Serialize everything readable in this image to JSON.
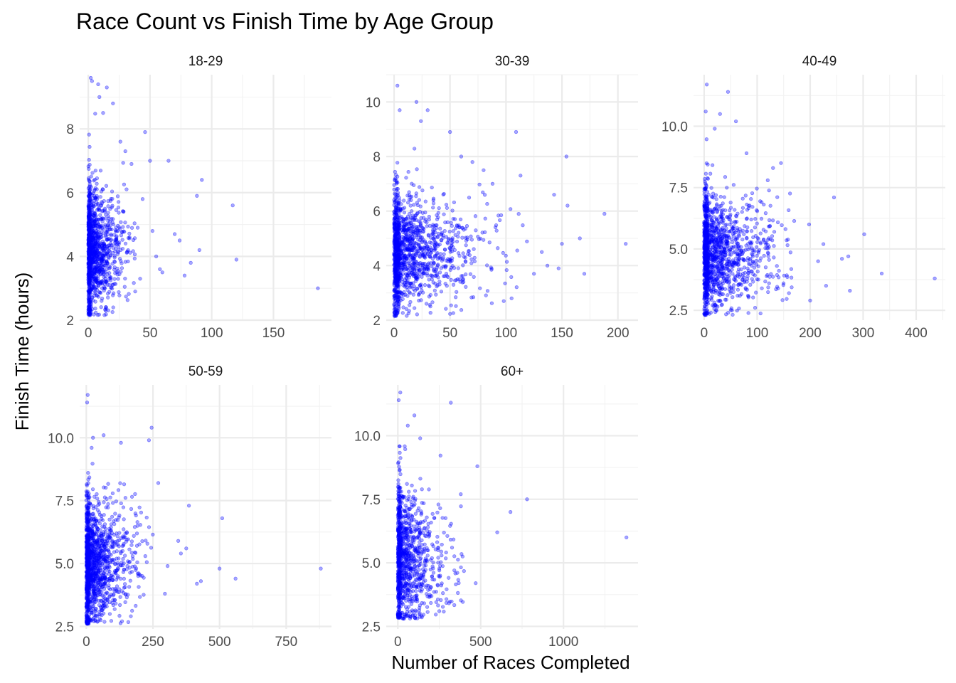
{
  "chart_data": {
    "type": "scatter",
    "title": "Race Count vs Finish Time by Age Group",
    "xlabel": "Number of Races Completed",
    "ylabel": "Finish Time (hours)",
    "point_color": "#0000ff",
    "grid": true,
    "facets": [
      {
        "label": "18-29",
        "xlim": [
          -7,
          197
        ],
        "ylim": [
          2.0,
          9.7
        ],
        "xticks": [
          0,
          50,
          100,
          150
        ],
        "yticks": [
          2,
          4,
          6,
          8
        ],
        "cloud": {
          "n": 900,
          "xmax_dense": 38,
          "xscale": 10,
          "ymean": 4.2,
          "ysd": 0.9,
          "ymin": 2.15
        },
        "outliers": [
          [
            120,
            3.9
          ],
          [
            117,
            5.6
          ],
          [
            186,
            3.0
          ],
          [
            92,
            6.4
          ],
          [
            90,
            4.2
          ],
          [
            88,
            5.9
          ],
          [
            83,
            3.8
          ],
          [
            78,
            3.4
          ],
          [
            74,
            4.5
          ],
          [
            70,
            4.7
          ],
          [
            65,
            7.0
          ],
          [
            60,
            3.5
          ],
          [
            58,
            3.6
          ],
          [
            55,
            4.0
          ],
          [
            52,
            4.8
          ],
          [
            50,
            7.0
          ],
          [
            46,
            7.9
          ],
          [
            44,
            5.8
          ],
          [
            42,
            3.3
          ],
          [
            40,
            4.9
          ],
          [
            38,
            2.9
          ],
          [
            35,
            6.9
          ],
          [
            30,
            7.3
          ],
          [
            26,
            7.6
          ],
          [
            20,
            8.8
          ],
          [
            15,
            9.3
          ],
          [
            12,
            8.5
          ],
          [
            9,
            9.0
          ],
          [
            8,
            9.4
          ],
          [
            3,
            9.5
          ],
          [
            2,
            9.6
          ]
        ]
      },
      {
        "label": "30-39",
        "xlim": [
          -7,
          218
        ],
        "ylim": [
          2.0,
          11.0
        ],
        "xticks": [
          0,
          50,
          100,
          150,
          200
        ],
        "yticks": [
          2,
          4,
          6,
          8,
          10
        ],
        "cloud": {
          "n": 1000,
          "xmax_dense": 120,
          "xscale": 25,
          "ymean": 4.5,
          "ysd": 1.0,
          "ymin": 2.15
        },
        "outliers": [
          [
            207,
            4.8
          ],
          [
            188,
            5.9
          ],
          [
            170,
            3.7
          ],
          [
            166,
            5.0
          ],
          [
            155,
            6.2
          ],
          [
            154,
            8.0
          ],
          [
            150,
            4.8
          ],
          [
            147,
            3.9
          ],
          [
            143,
            6.6
          ],
          [
            137,
            4.0
          ],
          [
            132,
            4.5
          ],
          [
            125,
            3.7
          ],
          [
            113,
            7.3
          ],
          [
            109,
            8.9
          ],
          [
            105,
            2.8
          ],
          [
            98,
            2.7
          ],
          [
            88,
            7.0
          ],
          [
            80,
            7.5
          ],
          [
            70,
            7.8
          ],
          [
            60,
            8.0
          ],
          [
            50,
            8.9
          ],
          [
            30,
            9.7
          ],
          [
            24,
            9.3
          ],
          [
            20,
            10.0
          ],
          [
            3,
            10.6
          ],
          [
            5,
            9.7
          ]
        ]
      },
      {
        "label": "40-49",
        "xlim": [
          -20,
          455
        ],
        "ylim": [
          2.1,
          12.1
        ],
        "xticks": [
          0,
          100,
          200,
          300,
          400
        ],
        "yticks": [
          2.5,
          5.0,
          7.5,
          10.0
        ],
        "cloud": {
          "n": 1000,
          "xmax_dense": 170,
          "xscale": 45,
          "ymean": 4.8,
          "ysd": 1.1,
          "ymin": 2.3
        },
        "outliers": [
          [
            435,
            3.8
          ],
          [
            335,
            4.0
          ],
          [
            302,
            5.6
          ],
          [
            275,
            3.3
          ],
          [
            272,
            4.7
          ],
          [
            260,
            4.6
          ],
          [
            245,
            7.1
          ],
          [
            230,
            3.5
          ],
          [
            225,
            5.2
          ],
          [
            215,
            4.5
          ],
          [
            200,
            2.9
          ],
          [
            198,
            6.0
          ],
          [
            160,
            3.2
          ],
          [
            145,
            8.5
          ],
          [
            130,
            8.3
          ],
          [
            120,
            7.8
          ],
          [
            80,
            8.9
          ],
          [
            60,
            10.2
          ],
          [
            45,
            11.4
          ],
          [
            30,
            10.5
          ],
          [
            20,
            9.9
          ],
          [
            5,
            11.7
          ],
          [
            3,
            10.6
          ]
        ]
      },
      {
        "label": "50-59",
        "xlim": [
          -25,
          920
        ],
        "ylim": [
          2.4,
          12.1
        ],
        "xticks": [
          0,
          250,
          500,
          750
        ],
        "yticks": [
          2.5,
          5.0,
          7.5,
          10.0
        ],
        "cloud": {
          "n": 1000,
          "xmax_dense": 250,
          "xscale": 55,
          "ymean": 5.0,
          "ysd": 1.2,
          "ymin": 2.6
        },
        "outliers": [
          [
            880,
            4.8
          ],
          [
            560,
            4.4
          ],
          [
            510,
            6.8
          ],
          [
            500,
            4.8
          ],
          [
            430,
            4.3
          ],
          [
            415,
            4.2
          ],
          [
            385,
            7.3
          ],
          [
            375,
            5.6
          ],
          [
            355,
            5.4
          ],
          [
            345,
            5.9
          ],
          [
            305,
            4.9
          ],
          [
            295,
            3.8
          ],
          [
            270,
            8.2
          ],
          [
            245,
            10.4
          ],
          [
            235,
            9.9
          ],
          [
            130,
            9.8
          ],
          [
            65,
            10.1
          ],
          [
            25,
            10.0
          ],
          [
            20,
            9.6
          ],
          [
            5,
            11.7
          ],
          [
            3,
            11.4
          ]
        ]
      },
      {
        "label": "60+",
        "xlim": [
          -70,
          1450
        ],
        "ylim": [
          2.4,
          12.0
        ],
        "xticks": [
          0,
          500,
          1000
        ],
        "yticks": [
          2.5,
          5.0,
          7.5,
          10.0
        ],
        "cloud": {
          "n": 800,
          "xmax_dense": 400,
          "xscale": 90,
          "ymean": 5.2,
          "ysd": 1.3,
          "ymin": 2.8
        },
        "outliers": [
          [
            1380,
            6.0
          ],
          [
            780,
            7.5
          ],
          [
            680,
            7.0
          ],
          [
            600,
            6.2
          ],
          [
            480,
            8.8
          ],
          [
            470,
            4.2
          ],
          [
            380,
            7.7
          ],
          [
            320,
            11.3
          ],
          [
            250,
            3.1
          ],
          [
            135,
            9.9
          ],
          [
            100,
            10.8
          ],
          [
            60,
            10.4
          ],
          [
            15,
            11.7
          ],
          [
            5,
            11.4
          ]
        ]
      }
    ]
  }
}
